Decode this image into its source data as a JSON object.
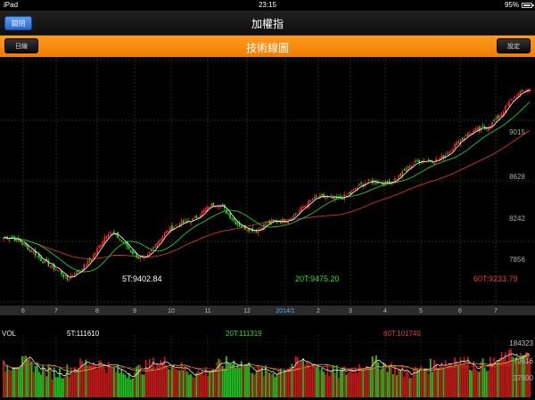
{
  "statusbar": {
    "device": "iPad",
    "time": "23:15",
    "battery": "95%"
  },
  "nav": {
    "title": "加權指",
    "close_label": "關閉"
  },
  "toolbar": {
    "title": "技術線圖",
    "period_label": "日線",
    "settings_label": "設定"
  },
  "colors": {
    "up": "#ff2a2a",
    "down": "#1ee81e",
    "ma5": "#ffffff",
    "ma20": "#22cc22",
    "ma60": "#cc3333",
    "toolbar": "#f58a0b"
  },
  "price_panel": {
    "y_labels": [
      "9015",
      "8628",
      "8242",
      "7856"
    ],
    "ma_labels": {
      "ma5": "5T:9402.84",
      "ma20": "20T:9475.20",
      "ma60": "60T:9233.79"
    }
  },
  "x_axis": {
    "labels": [
      "6",
      "7",
      "8",
      "9",
      "10",
      "11",
      "12",
      "2014/1",
      "2",
      "3",
      "4",
      "5",
      "6",
      "7"
    ]
  },
  "volume_panel": {
    "title": "VOL",
    "ma_labels": {
      "ma5": "5T:111610",
      "ma20": "20T:111319",
      "ma60": "60T:101740"
    },
    "y_labels": [
      "184323",
      "79616",
      "37600"
    ]
  },
  "chart_data": {
    "type": "candlestick",
    "title": "加權指",
    "period": "日線",
    "price_axis_ticks": [
      7856,
      8242,
      8628,
      9015
    ],
    "price_range": [
      7520,
      9800
    ],
    "volume_axis_ticks": [
      37600,
      79616,
      184323
    ],
    "volume_range": [
      0,
      200000
    ],
    "x_month_labels": [
      "6",
      "7",
      "8",
      "9",
      "10",
      "11",
      "12",
      "2014/1",
      "2",
      "3",
      "4",
      "5",
      "6",
      "7"
    ],
    "close_trend": [
      {
        "month": "6",
        "close": 8040
      },
      {
        "month": "7",
        "close": 7720
      },
      {
        "month": "8",
        "close": 8160
      },
      {
        "month": "9",
        "close": 7960
      },
      {
        "month": "10",
        "close": 8300
      },
      {
        "month": "11",
        "close": 8420
      },
      {
        "month": "12",
        "close": 8180
      },
      {
        "month": "2014/1",
        "close": 8390
      },
      {
        "month": "2",
        "close": 8510
      },
      {
        "month": "3",
        "close": 8590
      },
      {
        "month": "4",
        "close": 8710
      },
      {
        "month": "5",
        "close": 8860
      },
      {
        "month": "6",
        "close": 9070
      },
      {
        "month": "7",
        "close": 9520
      }
    ],
    "last_values": {
      "MA5": 9402.84,
      "MA20": 9475.2,
      "MA60": 9233.79,
      "VOL_MA5": 111610,
      "VOL_MA20": 111319,
      "VOL_MA60": 101740
    },
    "series": [
      {
        "name": "5T"
      },
      {
        "name": "20T"
      },
      {
        "name": "60T"
      }
    ]
  }
}
